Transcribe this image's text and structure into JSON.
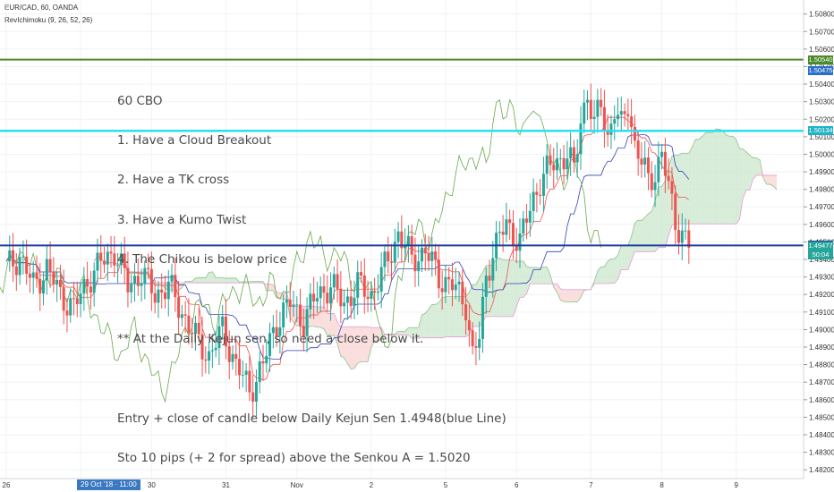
{
  "header": {
    "symbol": "EUR/CAD, 60, OANDA",
    "indicator": "RevIchimoku (9, 26, 52, 26)"
  },
  "note_lines": [
    "60 CBO",
    "1. Have a Cloud Breakout",
    "2. Have a TK cross",
    "3. Have a Kumo Twist",
    "4. The Chikou is below price",
    "",
    "** At the Daily Kejun sen, so need a close below it.",
    "",
    "Entry + close of candle below Daily Kejun Sen 1.4948(blue Line)",
    "Sto 10 pips (+ 2 for spread) above the Senkou A = 1.5020"
  ],
  "x_selected_label": "29 Oct '18 · 11:00",
  "price_tags": [
    {
      "label": "1.50540",
      "value": 1.5054,
      "color": "#4a8a2a"
    },
    {
      "label": "1.50475",
      "value": 1.50475,
      "color": "#2a6fc9"
    },
    {
      "label": "1.50134",
      "value": 1.50134,
      "color": "#1fb3c6"
    },
    {
      "label": "1.49480",
      "value": 1.4948,
      "color": "#1f3e9e"
    },
    {
      "label": "1.49477",
      "value": 1.49477,
      "color": "#26a69a"
    },
    {
      "label": "50:04",
      "value": 1.49425,
      "color": "#26a69a"
    }
  ],
  "colors": {
    "up": "#26a69a",
    "down": "#ef5350",
    "tenkan": "#ef5350",
    "kijun": "#3240b8",
    "chikou": "#6aa84f",
    "cloud_bull": "#c8e6c9",
    "cloud_bear": "#f9d0d0",
    "line_green": "#4a8a2a",
    "line_cyan": "#29e0f0",
    "line_blue": "#1f3e9e"
  },
  "chart_data": {
    "type": "candlestick",
    "symbol": "EUR/CAD",
    "timeframe": "60",
    "y_ticks": [
      "1.50800",
      "1.50700",
      "1.50600",
      "1.50500",
      "1.50400",
      "1.50300",
      "1.50200",
      "1.50100",
      "1.50000",
      "1.49900",
      "1.49800",
      "1.49700",
      "1.49600",
      "1.49500",
      "1.49400",
      "1.49300",
      "1.49200",
      "1.49100",
      "1.49000",
      "1.48900",
      "1.48800",
      "1.48700",
      "1.48600",
      "1.48500",
      "1.48400",
      "1.48300",
      "1.48200"
    ],
    "ylim": [
      1.4815,
      1.5088
    ],
    "x_ticks": [
      {
        "label": "26",
        "i": 0
      },
      {
        "label": "29",
        "i": 22
      },
      {
        "label": "30",
        "i": 43
      },
      {
        "label": "31",
        "i": 65
      },
      {
        "label": "Nov",
        "i": 86
      },
      {
        "label": "2",
        "i": 108
      },
      {
        "label": "5",
        "i": 130
      },
      {
        "label": "6",
        "i": 151
      },
      {
        "label": "7",
        "i": 173
      },
      {
        "label": "8",
        "i": 194
      },
      {
        "label": "9",
        "i": 216
      }
    ],
    "x_count": 228,
    "horizontal_lines": [
      {
        "value": 1.5054,
        "color": "#4a8a2a"
      },
      {
        "value": 1.50134,
        "color": "#29e0f0"
      },
      {
        "value": 1.4948,
        "color": "#1f3e9e"
      }
    ],
    "close_path": [
      [
        0,
        1.4935
      ],
      [
        4,
        1.4942
      ],
      [
        8,
        1.4925
      ],
      [
        12,
        1.4935
      ],
      [
        16,
        1.492
      ],
      [
        20,
        1.4912
      ],
      [
        24,
        1.4928
      ],
      [
        28,
        1.4938
      ],
      [
        32,
        1.4945
      ],
      [
        36,
        1.4925
      ],
      [
        40,
        1.4932
      ],
      [
        44,
        1.492
      ],
      [
        48,
        1.4925
      ],
      [
        52,
        1.491
      ],
      [
        56,
        1.4895
      ],
      [
        60,
        1.4885
      ],
      [
        64,
        1.49
      ],
      [
        68,
        1.488
      ],
      [
        72,
        1.4865
      ],
      [
        76,
        1.488
      ],
      [
        80,
        1.4905
      ],
      [
        84,
        1.4915
      ],
      [
        88,
        1.4905
      ],
      [
        92,
        1.492
      ],
      [
        96,
        1.4925
      ],
      [
        100,
        1.4915
      ],
      [
        104,
        1.4925
      ],
      [
        108,
        1.492
      ],
      [
        112,
        1.4935
      ],
      [
        116,
        1.4955
      ],
      [
        120,
        1.494
      ],
      [
        124,
        1.4945
      ],
      [
        128,
        1.493
      ],
      [
        132,
        1.4925
      ],
      [
        136,
        1.4915
      ],
      [
        138,
        1.4885
      ],
      [
        140,
        1.4895
      ],
      [
        142,
        1.493
      ],
      [
        144,
        1.4945
      ],
      [
        148,
        1.496
      ],
      [
        150,
        1.4955
      ],
      [
        152,
        1.495
      ],
      [
        156,
        1.4975
      ],
      [
        158,
        1.4985
      ],
      [
        162,
        1.4995
      ],
      [
        166,
        1.5
      ],
      [
        168,
        1.499
      ],
      [
        170,
        1.502
      ],
      [
        172,
        1.5035
      ],
      [
        174,
        1.5015
      ],
      [
        176,
        1.503
      ],
      [
        178,
        1.501
      ],
      [
        180,
        1.5025
      ],
      [
        182,
        1.5015
      ],
      [
        184,
        1.503
      ],
      [
        186,
        1.5005
      ],
      [
        188,
        1.4995
      ],
      [
        190,
        1.4985
      ],
      [
        192,
        1.499
      ],
      [
        194,
        1.5
      ],
      [
        196,
        1.498
      ],
      [
        198,
        1.4962
      ],
      [
        200,
        1.4955
      ],
      [
        202,
        1.4948
      ]
    ]
  }
}
